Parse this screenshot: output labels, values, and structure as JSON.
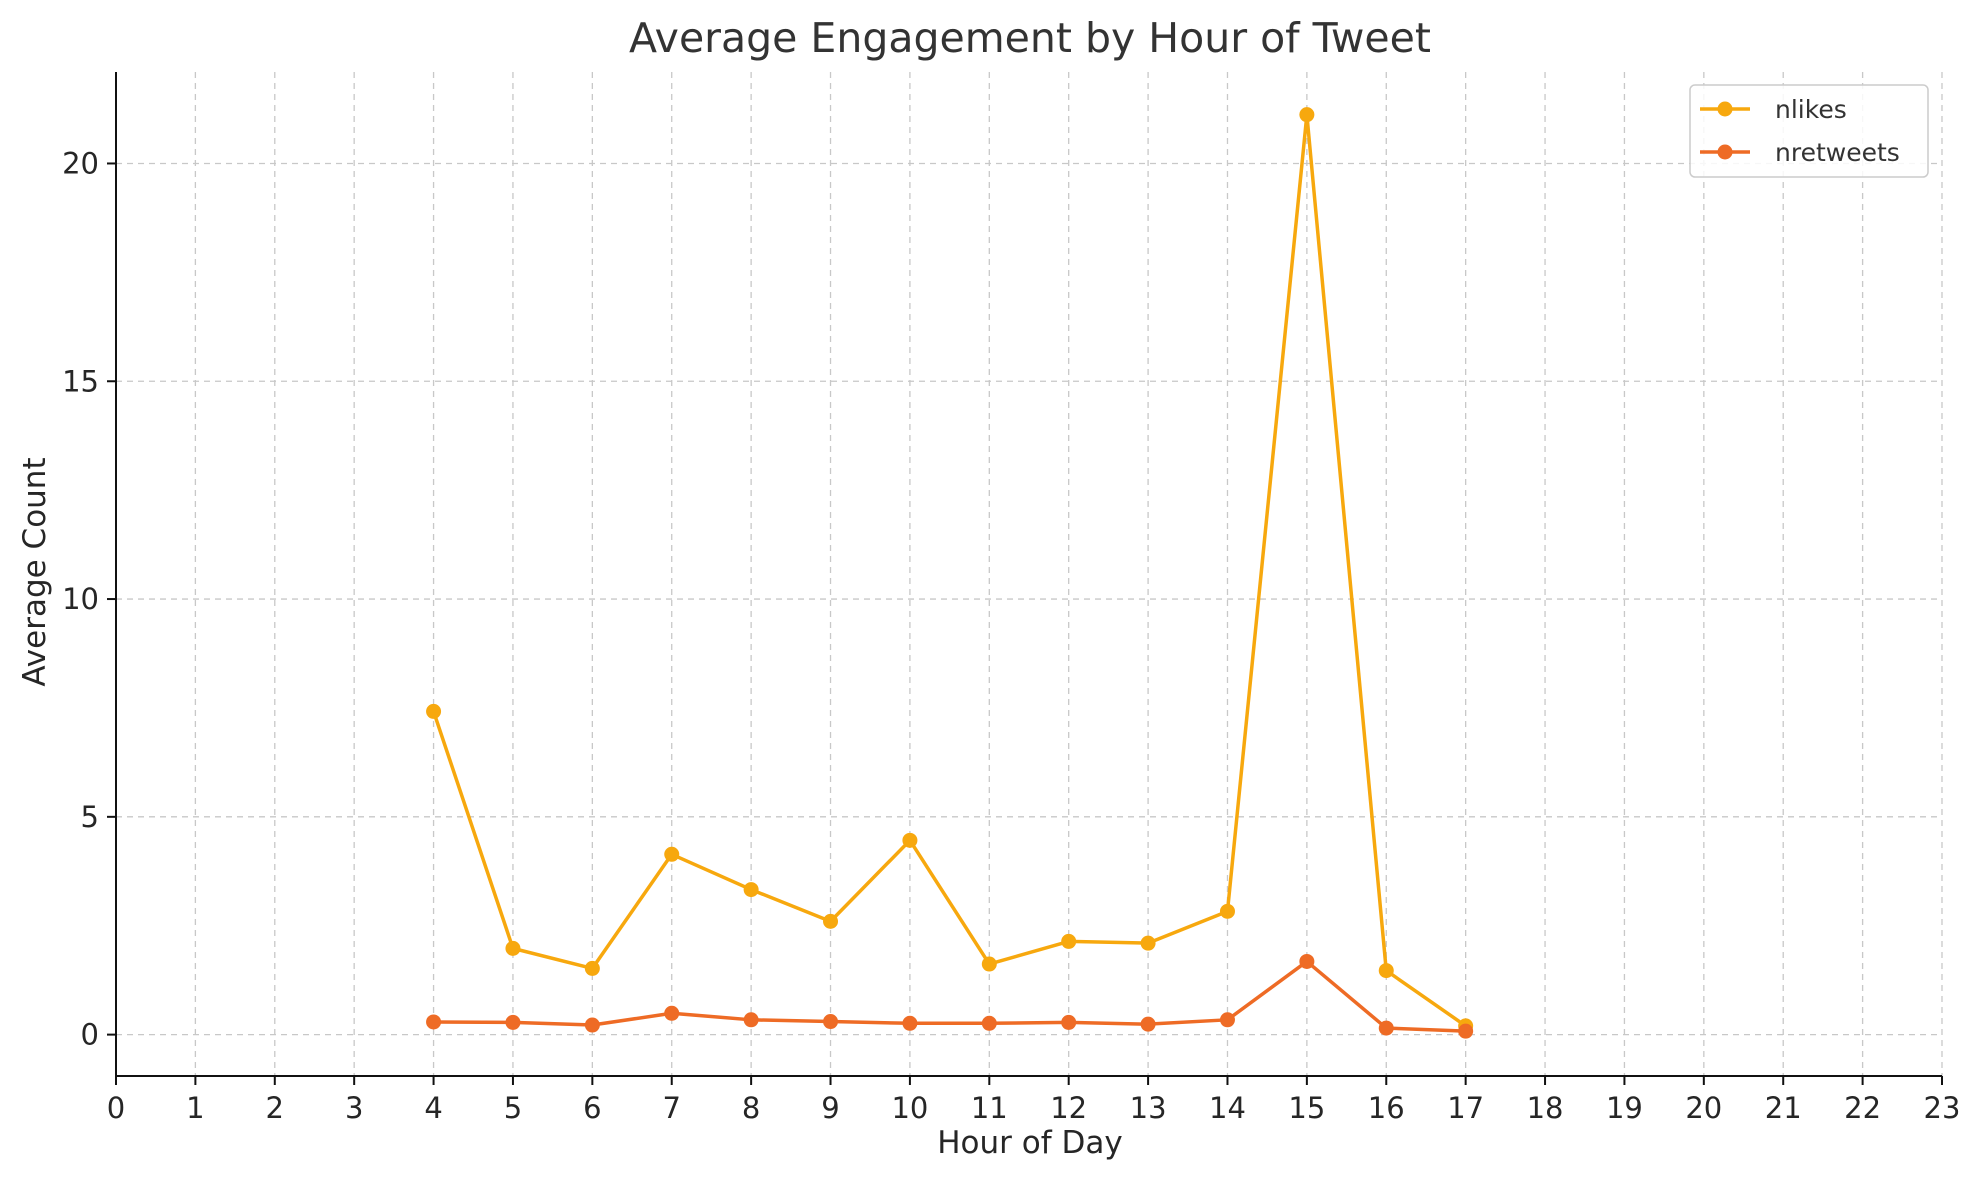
{
  "chart_data": {
    "type": "line",
    "title": "Average Engagement by Hour of Tweet",
    "xlabel": "Hour of Day",
    "ylabel": "Average Count",
    "xlim": [
      0,
      23
    ],
    "ylim": [
      -0.95,
      22.1
    ],
    "xticks": [
      0,
      1,
      2,
      3,
      4,
      5,
      6,
      7,
      8,
      9,
      10,
      11,
      12,
      13,
      14,
      15,
      16,
      17,
      18,
      19,
      20,
      21,
      22,
      23
    ],
    "yticks": [
      0,
      5,
      10,
      15,
      20
    ],
    "grid": true,
    "legend_position": "top-right",
    "x": [
      4,
      5,
      6,
      7,
      8,
      9,
      10,
      11,
      12,
      13,
      14,
      15,
      16,
      17
    ],
    "series": [
      {
        "name": "nlikes",
        "color": "#F7A80E",
        "marker": "circle",
        "values": [
          7.42,
          1.98,
          1.52,
          4.14,
          3.33,
          2.6,
          4.46,
          1.62,
          2.14,
          2.1,
          2.83,
          21.12,
          1.47,
          0.2
        ]
      },
      {
        "name": "nretweets",
        "color": "#EE6B25",
        "marker": "circle",
        "values": [
          0.29,
          0.28,
          0.22,
          0.49,
          0.34,
          0.3,
          0.26,
          0.26,
          0.28,
          0.24,
          0.34,
          1.68,
          0.15,
          0.08
        ]
      }
    ]
  }
}
